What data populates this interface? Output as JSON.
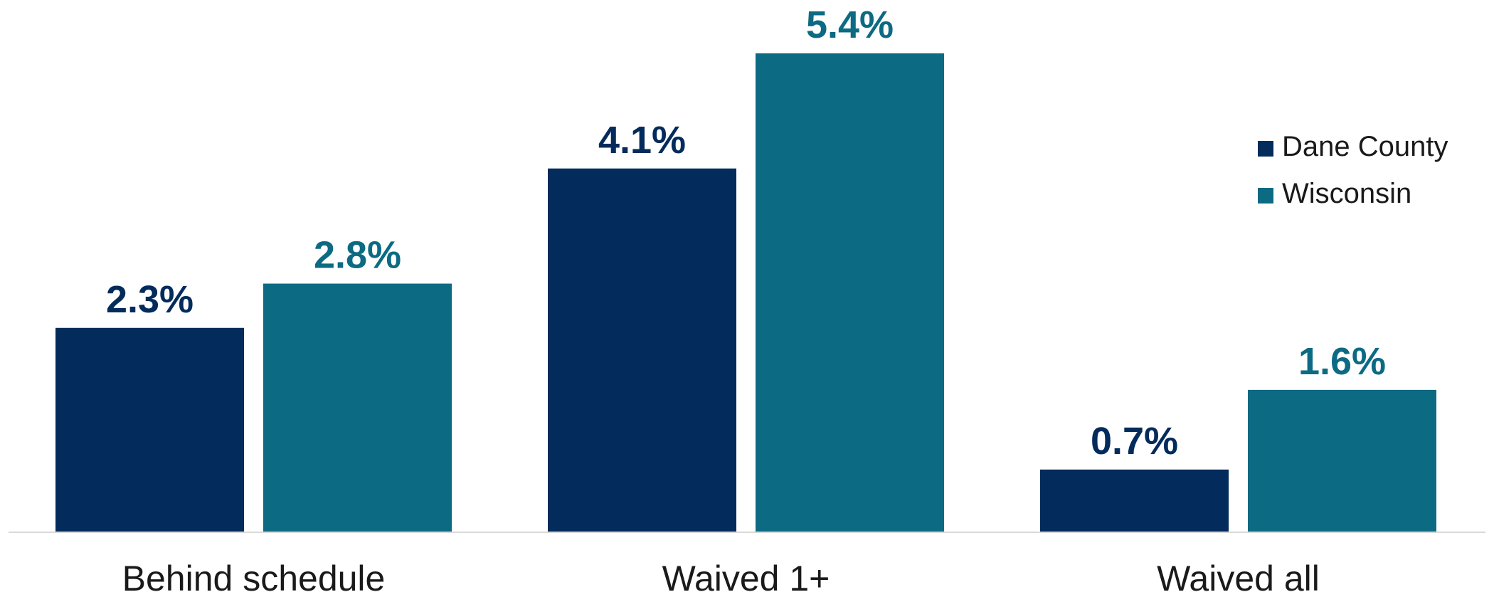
{
  "chart_data": {
    "type": "bar",
    "categories": [
      "Behind schedule",
      "Waived 1+",
      "Waived all"
    ],
    "series": [
      {
        "name": "Dane County",
        "values": [
          2.3,
          4.1,
          0.7
        ],
        "labels": [
          "2.3%",
          "4.1%",
          "0.7%"
        ],
        "color": "#032b5c"
      },
      {
        "name": "Wisconsin",
        "values": [
          2.8,
          5.4,
          1.6
        ],
        "labels": [
          "2.8%",
          "5.4%",
          "1.6%"
        ],
        "color": "#0d6a83"
      }
    ],
    "title": "",
    "xlabel": "",
    "ylabel": "",
    "ylim": [
      0,
      5.4
    ],
    "grid": false,
    "legend_position": "right",
    "axis_line_color": "#d9d9d9"
  }
}
